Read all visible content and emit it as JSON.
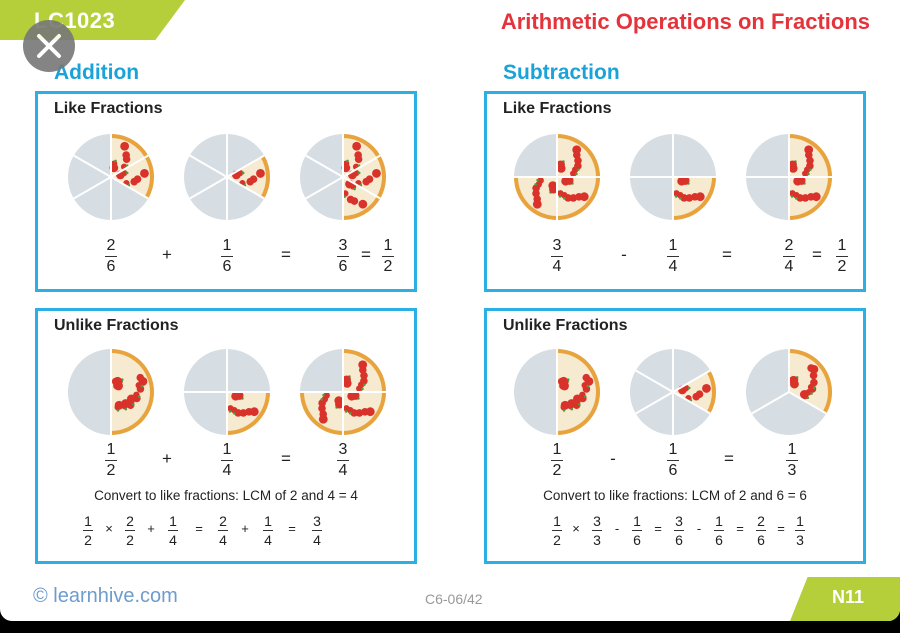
{
  "header": {
    "code": "LC1023",
    "title": "Arithmetic Operations on Fractions"
  },
  "addition": {
    "title": "Addition",
    "like": {
      "label": "Like Fractions",
      "expr": {
        "a": {
          "n": "2",
          "d": "6"
        },
        "op1": "+",
        "b": {
          "n": "1",
          "d": "6"
        },
        "eq": "=",
        "c": {
          "n": "3",
          "d": "6"
        },
        "eq2": "=",
        "r": {
          "n": "1",
          "d": "2"
        }
      }
    },
    "unlike": {
      "label": "Unlike Fractions",
      "expr": {
        "a": {
          "n": "1",
          "d": "2"
        },
        "op1": "+",
        "b": {
          "n": "1",
          "d": "4"
        },
        "eq": "=",
        "c": {
          "n": "3",
          "d": "4"
        }
      },
      "note": "Convert to like fractions: LCM of 2 and 4 = 4",
      "calc": {
        "t1": {
          "n": "1",
          "d": "2"
        },
        "m1": "×",
        "t2": {
          "n": "2",
          "d": "2"
        },
        "o1": "+",
        "t3": {
          "n": "1",
          "d": "4"
        },
        "o2": "=",
        "t4": {
          "n": "2",
          "d": "4"
        },
        "o3": "+",
        "t5": {
          "n": "1",
          "d": "4"
        },
        "o4": "=",
        "t6": {
          "n": "3",
          "d": "4"
        }
      }
    }
  },
  "subtraction": {
    "title": "Subtraction",
    "like": {
      "label": "Like Fractions",
      "expr": {
        "a": {
          "n": "3",
          "d": "4"
        },
        "op1": "-",
        "b": {
          "n": "1",
          "d": "4"
        },
        "eq": "=",
        "c": {
          "n": "2",
          "d": "4"
        },
        "eq2": "=",
        "r": {
          "n": "1",
          "d": "2"
        }
      }
    },
    "unlike": {
      "label": "Unlike Fractions",
      "expr": {
        "a": {
          "n": "1",
          "d": "2"
        },
        "op1": "-",
        "b": {
          "n": "1",
          "d": "6"
        },
        "eq": "=",
        "c": {
          "n": "1",
          "d": "3"
        }
      },
      "note": "Convert to like fractions: LCM of 2 and 6 = 6",
      "calc": {
        "t1": {
          "n": "1",
          "d": "2"
        },
        "m1": "×",
        "t2": {
          "n": "3",
          "d": "3"
        },
        "o1": "-",
        "t3": {
          "n": "1",
          "d": "6"
        },
        "o2": "=",
        "t4": {
          "n": "3",
          "d": "6"
        },
        "o3": "-",
        "t5": {
          "n": "1",
          "d": "6"
        },
        "o4": "=",
        "t6": {
          "n": "2",
          "d": "6"
        },
        "o5": "=",
        "t7": {
          "n": "1",
          "d": "3"
        }
      }
    }
  },
  "pies": {
    "add_like": [
      {
        "slices": 6,
        "filled": 2,
        "start": 0
      },
      {
        "slices": 6,
        "filled": 1,
        "start": 1
      },
      {
        "slices": 6,
        "filled": 3,
        "start": 0
      }
    ],
    "sub_like": [
      {
        "slices": 4,
        "filled": 3,
        "start": 0
      },
      {
        "slices": 4,
        "filled": 1,
        "start": 1
      },
      {
        "slices": 4,
        "filled": 2,
        "start": 0
      }
    ],
    "add_unlike": [
      {
        "slices": 2,
        "filled": 1,
        "start": 0
      },
      {
        "slices": 4,
        "filled": 1,
        "start": 1
      },
      {
        "slices": 4,
        "filled": 3,
        "start": 0
      }
    ],
    "sub_unlike": [
      {
        "slices": 2,
        "filled": 1,
        "start": 0
      },
      {
        "slices": 6,
        "filled": 1,
        "start": 1
      },
      {
        "slices": 3,
        "filled": 1,
        "start": 0
      }
    ]
  },
  "footer": {
    "site": "© learnhive.com",
    "code": "C6-06/42",
    "page": "N11"
  },
  "colors": {
    "accent": "#1aa3d9",
    "title": "#e5333b",
    "tab": "#b5cf3a",
    "plate": "#d6dde3",
    "crust": "#e8a33d",
    "sauce": "#d9322b",
    "cheese": "#f6ead0"
  }
}
